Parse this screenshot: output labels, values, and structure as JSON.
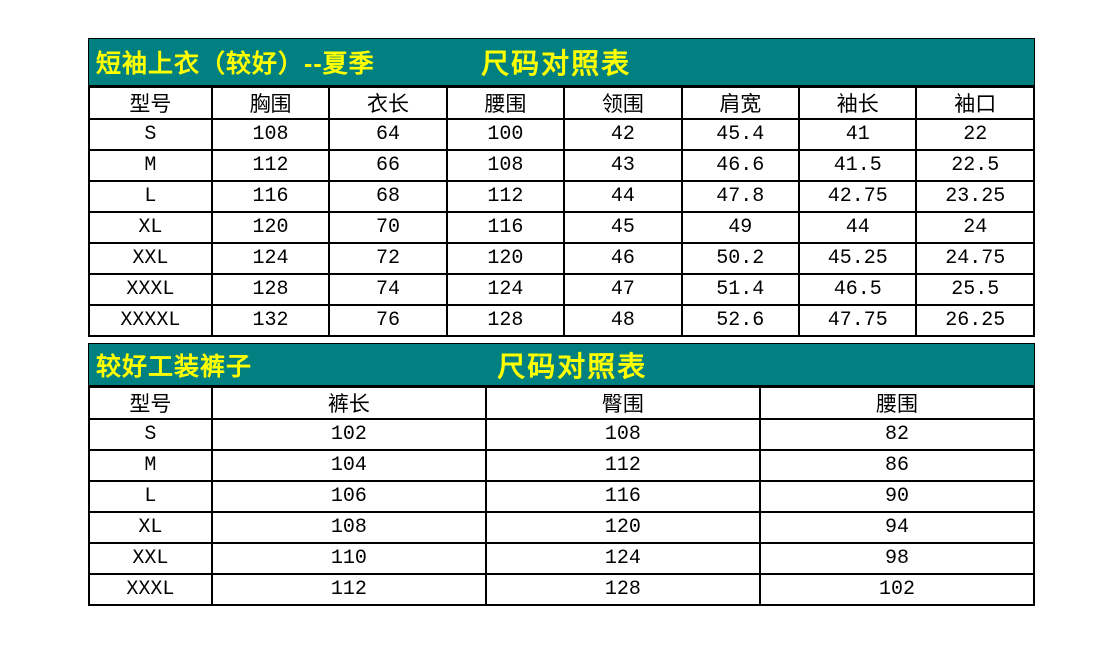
{
  "colors": {
    "banner_bg": "#008080",
    "banner_text": "#ffff00",
    "border": "#000000",
    "cell_text": "#000000",
    "cell_bg": "#ffffff"
  },
  "tables": [
    {
      "title": "短袖上衣（较好）--夏季",
      "subtitle": "尺码对照表",
      "headers": [
        "型号",
        "胸围",
        "衣长",
        "腰围",
        "领围",
        "肩宽",
        "袖长",
        "袖口"
      ],
      "rows": [
        [
          "S",
          "108",
          "64",
          "100",
          "42",
          "45.4",
          "41",
          "22"
        ],
        [
          "M",
          "112",
          "66",
          "108",
          "43",
          "46.6",
          "41.5",
          "22.5"
        ],
        [
          "L",
          "116",
          "68",
          "112",
          "44",
          "47.8",
          "42.75",
          "23.25"
        ],
        [
          "XL",
          "120",
          "70",
          "116",
          "45",
          "49",
          "44",
          "24"
        ],
        [
          "XXL",
          "124",
          "72",
          "120",
          "46",
          "50.2",
          "45.25",
          "24.75"
        ],
        [
          "XXXL",
          "128",
          "74",
          "124",
          "47",
          "51.4",
          "46.5",
          "25.5"
        ],
        [
          "XXXXL",
          "132",
          "76",
          "128",
          "48",
          "52.6",
          "47.75",
          "26.25"
        ]
      ]
    },
    {
      "title": "较好工装裤子",
      "subtitle": "尺码对照表",
      "headers": [
        "型号",
        "裤长",
        "臀围",
        "腰围"
      ],
      "rows": [
        [
          "S",
          "102",
          "108",
          "82"
        ],
        [
          "M",
          "104",
          "112",
          "86"
        ],
        [
          "L",
          "106",
          "116",
          "90"
        ],
        [
          "XL",
          "108",
          "120",
          "94"
        ],
        [
          "XXL",
          "110",
          "124",
          "98"
        ],
        [
          "XXXL",
          "112",
          "128",
          "102"
        ]
      ]
    }
  ]
}
